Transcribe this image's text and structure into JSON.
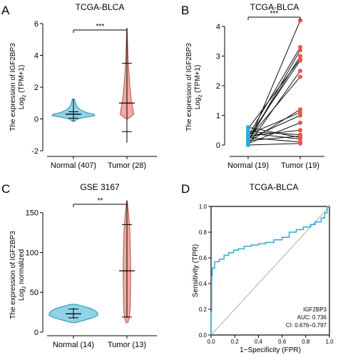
{
  "chart_data": [
    {
      "panel": "A",
      "type": "violin",
      "title": "TCGA-BLCA",
      "ylabel_line1": "The expression of IGF2BP3",
      "ylabel_line2_base": "Log",
      "ylabel_line2_sub": "2",
      "ylabel_line2_rest": " (TPM+1)",
      "ylim": [
        -2,
        6
      ],
      "yticks": [
        "-2",
        "0",
        "2",
        "4",
        "6"
      ],
      "ytick_values": [
        -2,
        0,
        2,
        4,
        6
      ],
      "categories": [
        "Normal (407)",
        "Tumor (28)"
      ],
      "significance": "***",
      "groups": [
        {
          "name": "Normal (407)",
          "min": -0.15,
          "max": 1.25,
          "mean": 0.3,
          "sd_low": 0.05,
          "sd_high": 0.45,
          "density": [
            [
              -0.15,
              0.04
            ],
            [
              0.0,
              0.2
            ],
            [
              0.1,
              0.55
            ],
            [
              0.2,
              1.0
            ],
            [
              0.3,
              0.95
            ],
            [
              0.4,
              0.6
            ],
            [
              0.6,
              0.3
            ],
            [
              0.8,
              0.15
            ],
            [
              1.0,
              0.1
            ],
            [
              1.25,
              0.05
            ]
          ]
        },
        {
          "name": "Tumor (28)",
          "min": -1.5,
          "max": 5.7,
          "mean": 1.0,
          "sd_low": -0.8,
          "sd_high": 3.5,
          "density": [
            [
              0.0,
              0.05
            ],
            [
              0.1,
              0.4
            ],
            [
              0.3,
              0.8
            ],
            [
              0.6,
              0.7
            ],
            [
              1.0,
              0.55
            ],
            [
              1.5,
              0.45
            ],
            [
              2.0,
              0.35
            ],
            [
              3.0,
              0.22
            ],
            [
              4.0,
              0.12
            ],
            [
              5.0,
              0.06
            ],
            [
              5.7,
              0.02
            ]
          ]
        }
      ]
    },
    {
      "panel": "B",
      "type": "paired-line",
      "title": "TCGA-BLCA",
      "ylabel_line1": "The expression of IGF2BP3",
      "ylabel_line2_base": "Log",
      "ylabel_line2_sub": "2",
      "ylabel_line2_rest": " (TPM+1)",
      "ylim": [
        0,
        4.2
      ],
      "yticks": [
        "0",
        "1",
        "2",
        "3",
        "4"
      ],
      "ytick_values": [
        0,
        1,
        2,
        3,
        4
      ],
      "categories": [
        "Normal (19)",
        "Tumor (19)"
      ],
      "significance": "***",
      "pairs": [
        [
          0.05,
          4.2
        ],
        [
          0.3,
          3.3
        ],
        [
          0.1,
          3.2
        ],
        [
          0.15,
          3.0
        ],
        [
          0.55,
          2.9
        ],
        [
          0.25,
          2.85
        ],
        [
          0.0,
          2.5
        ],
        [
          0.2,
          2.3
        ],
        [
          0.1,
          1.2
        ],
        [
          0.35,
          1.1
        ],
        [
          0.2,
          1.0
        ],
        [
          0.05,
          0.75
        ],
        [
          0.3,
          0.5
        ],
        [
          0.45,
          0.35
        ],
        [
          0.15,
          0.3
        ],
        [
          0.6,
          0.25
        ],
        [
          0.4,
          0.2
        ],
        [
          0.0,
          0.05
        ],
        [
          0.25,
          0.1
        ]
      ]
    },
    {
      "panel": "C",
      "type": "violin",
      "title": "GSE 3167",
      "ylabel_line1": "The expression of IGF2BP3",
      "ylabel_line2_base": "Log",
      "ylabel_line2_sub": "2",
      "ylabel_line2_rest": " normalized",
      "ylim": [
        0,
        165
      ],
      "yticks": [
        "0",
        "50",
        "100",
        "150"
      ],
      "ytick_values": [
        0,
        50,
        100,
        150
      ],
      "categories": [
        "Normal (14)",
        "Tumor (13)"
      ],
      "significance": "**",
      "groups": [
        {
          "name": "Normal (14)",
          "min": 17,
          "max": 30,
          "mean": 23,
          "sd_low": 18,
          "sd_high": 29,
          "density": [
            [
              12,
              0.1
            ],
            [
              15,
              0.45
            ],
            [
              18,
              0.8
            ],
            [
              21,
              1.0
            ],
            [
              24,
              1.0
            ],
            [
              27,
              0.9
            ],
            [
              30,
              0.7
            ],
            [
              33,
              0.35
            ],
            [
              35,
              0.1
            ]
          ]
        },
        {
          "name": "Tumor (13)",
          "min": 18,
          "max": 165,
          "mean": 77,
          "sd_low": 19,
          "sd_high": 135,
          "density": [
            [
              12,
              0.1
            ],
            [
              18,
              0.3
            ],
            [
              30,
              0.42
            ],
            [
              50,
              0.45
            ],
            [
              70,
              0.48
            ],
            [
              90,
              0.47
            ],
            [
              110,
              0.42
            ],
            [
              130,
              0.36
            ],
            [
              150,
              0.2
            ],
            [
              162,
              0.06
            ],
            [
              165,
              0.02
            ]
          ]
        }
      ]
    },
    {
      "panel": "D",
      "type": "roc",
      "title": "TCGA-BLCA",
      "xlabel": "1−Specificity (FPR)",
      "ylabel": "Sensitivity (TPR)",
      "xlim": [
        0,
        1
      ],
      "ylim": [
        0,
        1
      ],
      "ticks": [
        "0.0",
        "0.2",
        "0.4",
        "0.6",
        "0.8",
        "1.0"
      ],
      "tick_values": [
        0,
        0.2,
        0.4,
        0.6,
        0.8,
        1.0
      ],
      "legend": [
        "IGF2BP3",
        "AUC: 0.736",
        "CI: 0.676−0.797"
      ],
      "curve": [
        [
          0,
          0
        ],
        [
          0,
          0.18
        ],
        [
          0.005,
          0.18
        ],
        [
          0.005,
          0.46
        ],
        [
          0.01,
          0.46
        ],
        [
          0.01,
          0.52
        ],
        [
          0.03,
          0.52
        ],
        [
          0.03,
          0.57
        ],
        [
          0.07,
          0.57
        ],
        [
          0.07,
          0.59
        ],
        [
          0.11,
          0.59
        ],
        [
          0.11,
          0.62
        ],
        [
          0.15,
          0.62
        ],
        [
          0.15,
          0.64
        ],
        [
          0.19,
          0.64
        ],
        [
          0.19,
          0.66
        ],
        [
          0.23,
          0.66
        ],
        [
          0.23,
          0.67
        ],
        [
          0.28,
          0.67
        ],
        [
          0.28,
          0.69
        ],
        [
          0.34,
          0.69
        ],
        [
          0.34,
          0.7
        ],
        [
          0.4,
          0.7
        ],
        [
          0.4,
          0.71
        ],
        [
          0.46,
          0.71
        ],
        [
          0.46,
          0.72
        ],
        [
          0.53,
          0.72
        ],
        [
          0.53,
          0.74
        ],
        [
          0.6,
          0.74
        ],
        [
          0.6,
          0.76
        ],
        [
          0.66,
          0.76
        ],
        [
          0.66,
          0.8
        ],
        [
          0.72,
          0.8
        ],
        [
          0.72,
          0.82
        ],
        [
          0.78,
          0.82
        ],
        [
          0.78,
          0.84
        ],
        [
          0.84,
          0.84
        ],
        [
          0.84,
          0.86
        ],
        [
          0.88,
          0.86
        ],
        [
          0.88,
          0.88
        ],
        [
          0.93,
          0.88
        ],
        [
          0.93,
          0.91
        ],
        [
          0.96,
          0.91
        ],
        [
          0.96,
          0.95
        ],
        [
          0.98,
          0.95
        ],
        [
          0.98,
          1.0
        ],
        [
          1.0,
          1.0
        ]
      ]
    }
  ],
  "colors": {
    "normal_fill": "#8fd3e8",
    "normal_stroke": "#2a8fb0",
    "tumor_fill": "#f2a9a3",
    "tumor_stroke": "#c0504d",
    "normal_point": "#33a8d4",
    "tumor_point": "#e5574b",
    "roc_curve": "#33a8d4",
    "diagonal": "#b0b0b0",
    "axis": "#000000"
  }
}
